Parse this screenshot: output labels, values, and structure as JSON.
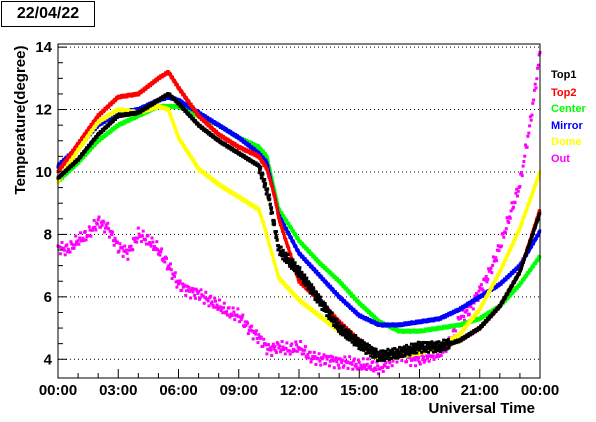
{
  "header": {
    "date": "22/04/22"
  },
  "chart_data": {
    "type": "scatter",
    "xlabel": "Universal Time",
    "ylabel": "Temperature(degree)",
    "x_unit": "hours UT",
    "xlim": [
      0,
      24
    ],
    "ylim": [
      3.4,
      14.1
    ],
    "x_ticks": [
      0,
      3,
      6,
      9,
      12,
      15,
      18,
      21,
      24
    ],
    "x_tick_labels": [
      "00:00",
      "03:00",
      "06:00",
      "09:00",
      "12:00",
      "15:00",
      "18:00",
      "21:00",
      "00:00"
    ],
    "y_ticks": [
      4,
      6,
      8,
      10,
      12,
      14
    ],
    "y_tick_labels": [
      "4",
      "6",
      "8",
      "10",
      "12",
      "14"
    ],
    "grid": "horizontal dotted",
    "legend_position": "right",
    "series": [
      {
        "name": "Top1",
        "color": "#000000",
        "x": [
          0,
          1,
          2,
          3,
          4,
          5,
          5.5,
          6,
          7,
          8,
          9,
          10,
          10.3,
          10.5,
          11,
          12,
          13,
          14,
          15,
          16,
          17,
          18,
          19,
          20,
          21,
          22,
          23,
          24
        ],
        "y": [
          9.8,
          10.4,
          11.2,
          11.8,
          11.9,
          12.3,
          12.5,
          12.2,
          11.5,
          11.0,
          10.6,
          10.2,
          9.6,
          9.2,
          7.5,
          6.8,
          5.9,
          5.0,
          4.5,
          4.1,
          4.2,
          4.4,
          4.4,
          4.6,
          5.0,
          5.7,
          6.8,
          8.7
        ]
      },
      {
        "name": "Top2",
        "color": "#ff0000",
        "x": [
          0,
          1,
          2,
          3,
          4,
          5,
          5.5,
          6,
          7,
          8,
          9,
          10,
          10.4,
          10.8,
          11,
          12,
          13,
          14,
          15,
          16,
          17,
          18,
          19,
          20,
          21,
          22,
          23,
          24
        ],
        "y": [
          10.0,
          10.9,
          11.8,
          12.4,
          12.5,
          13.0,
          13.2,
          12.7,
          11.8,
          11.2,
          10.8,
          10.5,
          10.1,
          9.2,
          8.5,
          6.5,
          5.9,
          5.2,
          4.6,
          4.1,
          4.2,
          4.3,
          4.4,
          4.6,
          5.0,
          5.7,
          6.8,
          8.8
        ]
      },
      {
        "name": "Center",
        "color": "#00ff00",
        "x": [
          0,
          1,
          2,
          3,
          4,
          5,
          6,
          7,
          8,
          9,
          10,
          10.4,
          11,
          12,
          13,
          14,
          15,
          16,
          17,
          18,
          19,
          20,
          21,
          22,
          23,
          24
        ],
        "y": [
          9.7,
          10.3,
          11.0,
          11.5,
          11.8,
          12.1,
          12.1,
          11.8,
          11.5,
          11.1,
          10.8,
          10.5,
          8.8,
          7.8,
          7.1,
          6.5,
          5.8,
          5.2,
          4.9,
          4.9,
          5.0,
          5.1,
          5.3,
          5.7,
          6.4,
          7.3
        ]
      },
      {
        "name": "Mirror",
        "color": "#0000ff",
        "x": [
          0,
          1,
          2,
          3,
          4,
          5,
          5.5,
          6,
          7,
          8,
          9,
          10,
          10.4,
          11,
          12,
          13,
          14,
          15,
          16,
          17,
          18,
          19,
          20,
          21,
          22,
          23,
          24
        ],
        "y": [
          10.2,
          10.8,
          11.5,
          11.9,
          12.0,
          12.3,
          12.4,
          12.3,
          11.9,
          11.5,
          11.1,
          10.6,
          10.3,
          8.6,
          7.4,
          6.7,
          6.0,
          5.4,
          5.1,
          5.1,
          5.2,
          5.3,
          5.6,
          6.0,
          6.4,
          7.0,
          8.1
        ]
      },
      {
        "name": "Dome",
        "color": "#ffff00",
        "x": [
          0,
          1,
          2,
          3,
          4,
          5,
          5.5,
          6,
          7,
          8,
          9,
          10,
          10.3,
          10.6,
          11,
          12,
          13,
          14,
          15,
          16,
          17,
          18,
          19,
          20,
          21,
          22,
          23,
          24
        ],
        "y": [
          9.7,
          10.7,
          11.6,
          12.0,
          11.9,
          12.1,
          12.0,
          11.1,
          10.1,
          9.6,
          9.2,
          8.8,
          8.2,
          7.5,
          6.6,
          5.9,
          5.4,
          4.9,
          4.5,
          4.0,
          4.1,
          4.2,
          4.4,
          4.8,
          5.6,
          6.8,
          8.2,
          10.0
        ]
      },
      {
        "name": "Out",
        "color": "#ff00ff",
        "x": [
          0,
          0.5,
          1,
          1.5,
          2,
          2.5,
          3,
          3.5,
          4,
          4.5,
          5,
          5.5,
          6,
          6.5,
          7,
          7.5,
          8,
          8.5,
          9,
          9.5,
          10,
          10.5,
          11,
          11.5,
          12,
          12.5,
          13,
          13.5,
          14,
          14.5,
          15,
          15.5,
          16,
          16.5,
          17,
          17.5,
          18,
          18.5,
          19,
          19.5,
          20,
          20.5,
          21,
          21.5,
          22,
          22.5,
          23,
          23.5,
          24
        ],
        "y": [
          7.6,
          7.5,
          7.8,
          8.0,
          8.4,
          8.2,
          7.6,
          7.4,
          8.0,
          7.8,
          7.5,
          7.0,
          6.4,
          6.2,
          6.1,
          5.9,
          5.7,
          5.5,
          5.4,
          5.0,
          4.7,
          4.3,
          4.4,
          4.3,
          4.4,
          4.1,
          4.0,
          4.0,
          3.9,
          3.9,
          3.8,
          3.8,
          3.7,
          3.9,
          4.2,
          4.0,
          4.0,
          4.1,
          4.2,
          4.5,
          5.3,
          5.6,
          6.2,
          6.8,
          7.6,
          8.6,
          9.6,
          11.5,
          13.8
        ]
      }
    ]
  }
}
